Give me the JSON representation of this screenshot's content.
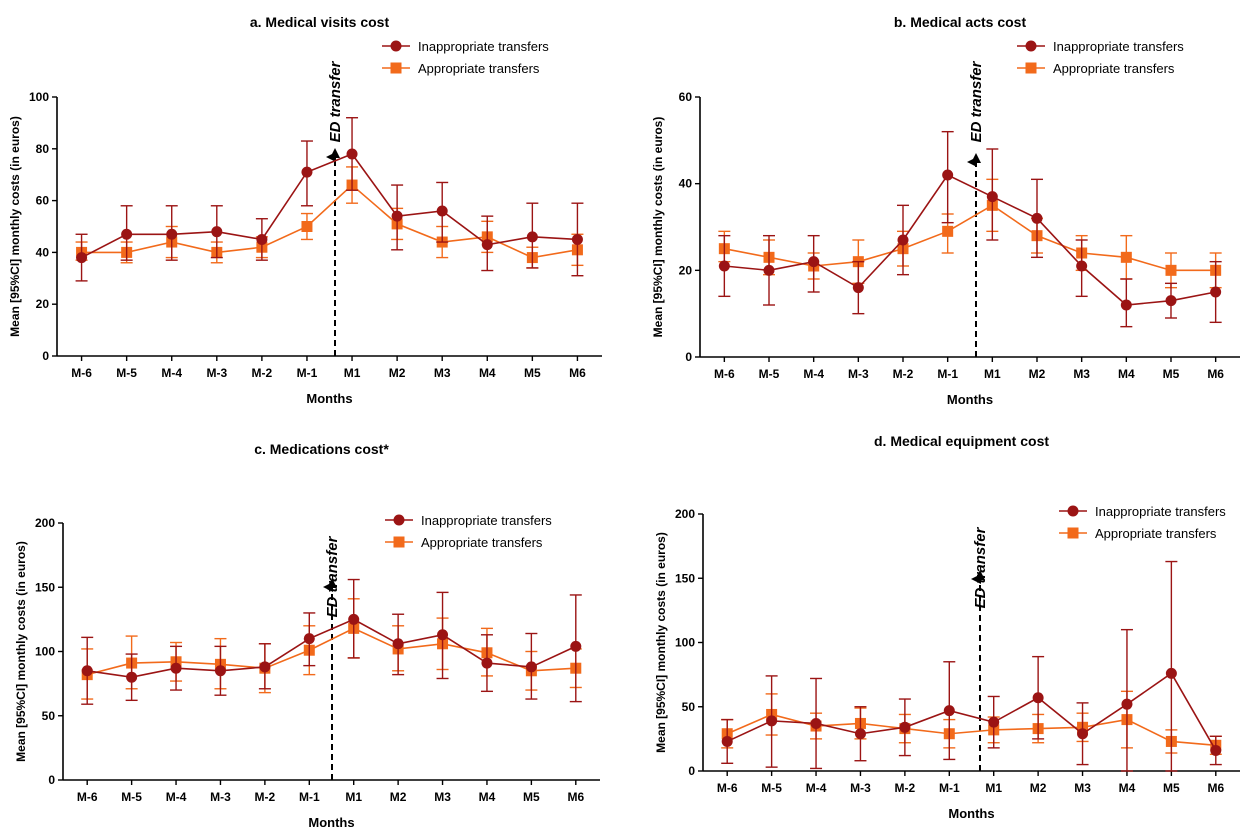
{
  "legend_labels": {
    "inappropriate": "Inappropriate transfers",
    "appropriate": "Appropriate transfers"
  },
  "colors": {
    "inappropriate": "#9b1414",
    "appropriate": "#f26a1b",
    "axis": "#000000"
  },
  "arrow_label": "ED transfer",
  "chart_data": [
    {
      "type": "line",
      "title": "a. Medical visits cost",
      "xlabel": "Months",
      "ylabel": "Mean [95%CI] monthly costs (in euros)",
      "ylim": [
        0,
        100
      ],
      "yticks": [
        0,
        20,
        40,
        60,
        80,
        100
      ],
      "categories": [
        "M-6",
        "M-5",
        "M-4",
        "M-3",
        "M-2",
        "M-1",
        "M1",
        "M2",
        "M3",
        "M4",
        "M5",
        "M6"
      ],
      "series": [
        {
          "name": "Inappropriate transfers",
          "values": [
            38,
            47,
            47,
            48,
            45,
            71,
            78,
            54,
            56,
            43,
            46,
            45
          ],
          "ci_low": [
            29,
            37,
            37,
            38,
            37,
            58,
            64,
            41,
            44,
            33,
            34,
            31
          ],
          "ci_high": [
            47,
            58,
            58,
            58,
            53,
            83,
            92,
            66,
            67,
            54,
            59,
            59
          ]
        },
        {
          "name": "Appropriate transfers",
          "values": [
            40,
            40,
            44,
            40,
            42,
            50,
            66,
            51,
            44,
            46,
            38,
            41
          ],
          "ci_low": [
            37,
            36,
            38,
            36,
            38,
            45,
            59,
            45,
            38,
            40,
            34,
            35
          ],
          "ci_high": [
            44,
            44,
            50,
            44,
            46,
            55,
            73,
            57,
            50,
            52,
            42,
            47
          ]
        }
      ]
    },
    {
      "type": "line",
      "title": "b. Medical acts cost",
      "xlabel": "Months",
      "ylabel": "Mean [95%CI] monthly costs (in euros)",
      "ylim": [
        0,
        60
      ],
      "yticks": [
        0,
        20,
        40,
        60
      ],
      "categories": [
        "M-6",
        "M-5",
        "M-4",
        "M-3",
        "M-2",
        "M-1",
        "M1",
        "M2",
        "M3",
        "M4",
        "M5",
        "M6"
      ],
      "series": [
        {
          "name": "Inappropriate transfers",
          "values": [
            21,
            20,
            22,
            16,
            27,
            42,
            37,
            32,
            21,
            12,
            13,
            15
          ],
          "ci_low": [
            14,
            12,
            15,
            10,
            19,
            31,
            27,
            23,
            14,
            7,
            9,
            8
          ],
          "ci_high": [
            28,
            28,
            28,
            22,
            35,
            52,
            48,
            41,
            27,
            18,
            17,
            22
          ]
        },
        {
          "name": "Appropriate transfers",
          "values": [
            25,
            23,
            21,
            22,
            25,
            29,
            35,
            28,
            24,
            23,
            20,
            20
          ],
          "ci_low": [
            22,
            19,
            18,
            17,
            21,
            24,
            29,
            24,
            20,
            18,
            16,
            16
          ],
          "ci_high": [
            29,
            27,
            24,
            27,
            29,
            33,
            41,
            32,
            28,
            28,
            24,
            24
          ]
        }
      ]
    },
    {
      "type": "line",
      "title": "c. Medications cost*",
      "xlabel": "Months",
      "ylabel": "Mean [95%CI] monthly costs (in euros)",
      "ylim": [
        0,
        200
      ],
      "yticks": [
        0,
        50,
        100,
        150,
        200
      ],
      "categories": [
        "M-6",
        "M-5",
        "M-4",
        "M-3",
        "M-2",
        "M-1",
        "M1",
        "M2",
        "M3",
        "M4",
        "M5",
        "M6"
      ],
      "series": [
        {
          "name": "Inappropriate transfers",
          "values": [
            85,
            80,
            87,
            85,
            88,
            110,
            125,
            106,
            113,
            91,
            88,
            104
          ],
          "ci_low": [
            59,
            62,
            70,
            66,
            71,
            89,
            95,
            82,
            79,
            69,
            63,
            61
          ],
          "ci_high": [
            111,
            98,
            104,
            104,
            106,
            130,
            156,
            129,
            146,
            113,
            114,
            144
          ]
        },
        {
          "name": "Appropriate transfers",
          "values": [
            82,
            91,
            92,
            90,
            87,
            101,
            118,
            102,
            106,
            99,
            85,
            87
          ],
          "ci_low": [
            63,
            71,
            77,
            71,
            68,
            82,
            95,
            85,
            86,
            81,
            70,
            72
          ],
          "ci_high": [
            102,
            112,
            107,
            110,
            106,
            120,
            141,
            120,
            126,
            118,
            100,
            102
          ]
        }
      ]
    },
    {
      "type": "line",
      "title": "d. Medical equipment cost",
      "xlabel": "Months",
      "ylabel": "Mean [95%CI] monthly costs (in euros)",
      "ylim": [
        0,
        200
      ],
      "yticks": [
        0,
        50,
        100,
        150,
        200
      ],
      "categories": [
        "M-6",
        "M-5",
        "M-4",
        "M-3",
        "M-2",
        "M-1",
        "M1",
        "M2",
        "M3",
        "M4",
        "M5",
        "M6"
      ],
      "series": [
        {
          "name": "Inappropriate transfers",
          "values": [
            23,
            39,
            37,
            29,
            34,
            47,
            38,
            57,
            29,
            52,
            76,
            16
          ],
          "ci_low": [
            6,
            3,
            2,
            8,
            12,
            9,
            18,
            25,
            5,
            0,
            0,
            5
          ],
          "ci_high": [
            40,
            74,
            72,
            50,
            56,
            85,
            58,
            89,
            53,
            110,
            163,
            27
          ]
        },
        {
          "name": "Appropriate transfers",
          "values": [
            29,
            44,
            35,
            37,
            33,
            29,
            32,
            33,
            34,
            40,
            23,
            20
          ],
          "ci_low": [
            18,
            28,
            25,
            25,
            22,
            18,
            22,
            22,
            23,
            18,
            14,
            13
          ],
          "ci_high": [
            40,
            60,
            45,
            49,
            44,
            40,
            42,
            44,
            45,
            62,
            32,
            27
          ]
        }
      ]
    }
  ]
}
